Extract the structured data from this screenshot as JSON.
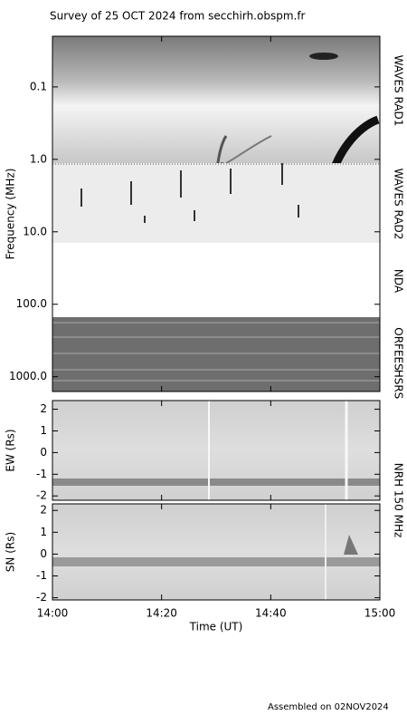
{
  "title": "Survey of 25 OCT 2024 from secchirh.obspm.fr",
  "footer": "Assembled on 02NOV2024",
  "chart_data": [
    {
      "type": "spectrogram",
      "ylabel": "Frequency (MHz)",
      "log_scale": true,
      "y_inverted": true,
      "ylim": [
        0.02,
        1600
      ],
      "yticks": [
        0.1,
        {
          "value": 1,
          "label": "1.0"
        },
        {
          "value": 10,
          "label": "10.0"
        },
        {
          "value": 100,
          "label": "100.0"
        },
        {
          "value": 1000,
          "label": "1000.0"
        }
      ],
      "instruments": [
        "WAVES RAD1",
        "WAVES RAD2",
        "NDA",
        "ORFEES",
        "HSRS"
      ]
    },
    {
      "type": "spectrogram",
      "ylabel": "EW (Rs)",
      "log_scale": false,
      "y_inverted": false,
      "ylim": [
        -2.2,
        2.4
      ],
      "yticks": [
        -2,
        -1,
        0,
        1,
        2
      ],
      "instruments": [
        "NRH 150 MHz"
      ]
    },
    {
      "type": "spectrogram",
      "ylabel": "SN (Rs)",
      "log_scale": false,
      "y_inverted": false,
      "ylim": [
        -2.1,
        2.3
      ],
      "yticks": [
        -2,
        -1,
        0,
        1,
        2
      ],
      "xlabel": "Time (UT)",
      "xlim": [
        "14:00",
        "15:00"
      ],
      "xticks": [
        "14:00",
        "14:20",
        "14:40",
        "15:00"
      ]
    }
  ]
}
